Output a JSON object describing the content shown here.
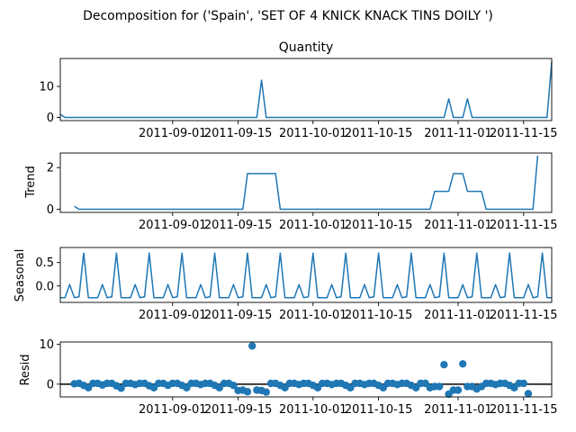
{
  "figure": {
    "suptitle": "Decomposition for ('Spain', 'SET OF 4 KNICK KNACK TINS DOILY ')"
  },
  "chart_data": [
    {
      "type": "line",
      "panel": "observed",
      "title": "Quantity",
      "ylabel": "",
      "x_start": "2011-08-08",
      "x_end": "2011-11-21",
      "xlim": [
        "2011-08-08",
        "2011-11-21"
      ],
      "ylim": [
        -1,
        19
      ],
      "yticks": [
        0,
        10
      ],
      "xticks": [
        "2011-09-01",
        "2011-09-15",
        "2011-10-01",
        "2011-10-15",
        "2011-11-01",
        "2011-11-15"
      ],
      "color": "#1f77b4",
      "points": [
        {
          "x": "2011-08-08",
          "y": 1
        },
        {
          "x": "2011-08-09",
          "y": 0
        },
        {
          "x": "2011-09-19",
          "y": 0
        },
        {
          "x": "2011-09-20",
          "y": 12
        },
        {
          "x": "2011-09-21",
          "y": 0
        },
        {
          "x": "2011-10-29",
          "y": 0
        },
        {
          "x": "2011-10-30",
          "y": 6
        },
        {
          "x": "2011-10-31",
          "y": 0
        },
        {
          "x": "2011-11-02",
          "y": 0
        },
        {
          "x": "2011-11-03",
          "y": 6
        },
        {
          "x": "2011-11-04",
          "y": 0
        },
        {
          "x": "2011-11-20",
          "y": 0
        },
        {
          "x": "2011-11-21",
          "y": 18
        }
      ]
    },
    {
      "type": "line",
      "panel": "trend",
      "title": "",
      "ylabel": "Trend",
      "xlim": [
        "2011-08-08",
        "2011-11-21"
      ],
      "ylim": [
        -0.15,
        2.7
      ],
      "yticks": [
        0,
        2
      ],
      "xticks": [
        "2011-09-01",
        "2011-09-15",
        "2011-10-01",
        "2011-10-15",
        "2011-11-01",
        "2011-11-15"
      ],
      "color": "#1f77b4",
      "points": [
        {
          "x": "2011-08-11",
          "y": 0.14
        },
        {
          "x": "2011-08-12",
          "y": 0
        },
        {
          "x": "2011-09-16",
          "y": 0
        },
        {
          "x": "2011-09-17",
          "y": 1.71
        },
        {
          "x": "2011-09-23",
          "y": 1.71
        },
        {
          "x": "2011-09-24",
          "y": 0
        },
        {
          "x": "2011-10-26",
          "y": 0
        },
        {
          "x": "2011-10-27",
          "y": 0.86
        },
        {
          "x": "2011-10-30",
          "y": 0.86
        },
        {
          "x": "2011-10-31",
          "y": 1.71
        },
        {
          "x": "2011-11-02",
          "y": 1.71
        },
        {
          "x": "2011-11-03",
          "y": 0.86
        },
        {
          "x": "2011-11-06",
          "y": 0.86
        },
        {
          "x": "2011-11-07",
          "y": 0
        },
        {
          "x": "2011-11-17",
          "y": 0
        },
        {
          "x": "2011-11-18",
          "y": 2.57
        }
      ]
    },
    {
      "type": "line",
      "panel": "seasonal",
      "title": "",
      "ylabel": "Seasonal",
      "xlim": [
        "2011-08-08",
        "2011-11-21"
      ],
      "ylim": [
        -0.35,
        0.82
      ],
      "yticks": [
        0.0,
        0.5
      ],
      "ytick_labels": [
        "0.0",
        "0.5"
      ],
      "xticks": [
        "2011-09-01",
        "2011-09-15",
        "2011-10-01",
        "2011-10-15",
        "2011-11-01",
        "2011-11-15"
      ],
      "color": "#1f77b4",
      "period_days": 7,
      "weekly_pattern": [
        -0.25,
        -0.25,
        0.03,
        -0.25,
        -0.23,
        0.7,
        -0.25
      ],
      "pattern_start": "2011-08-08"
    },
    {
      "type": "scatter",
      "panel": "resid",
      "title": "",
      "ylabel": "Resid",
      "xlim": [
        "2011-08-08",
        "2011-11-21"
      ],
      "ylim": [
        -3.2,
        10.6
      ],
      "yticks": [
        0,
        10
      ],
      "xticks": [
        "2011-09-01",
        "2011-09-15",
        "2011-10-01",
        "2011-10-15",
        "2011-11-01",
        "2011-11-15"
      ],
      "color": "#1f77b4",
      "baseline": 0,
      "points": [
        {
          "x": "2011-08-11",
          "y": 0.1
        },
        {
          "x": "2011-08-12",
          "y": 0.2
        },
        {
          "x": "2011-08-13",
          "y": -0.3
        },
        {
          "x": "2011-08-14",
          "y": -0.9
        },
        {
          "x": "2011-08-15",
          "y": 0.2
        },
        {
          "x": "2011-08-16",
          "y": 0.2
        },
        {
          "x": "2011-08-17",
          "y": -0.2
        },
        {
          "x": "2011-08-18",
          "y": 0.2
        },
        {
          "x": "2011-08-19",
          "y": 0.2
        },
        {
          "x": "2011-08-20",
          "y": -0.4
        },
        {
          "x": "2011-08-21",
          "y": -1.0
        },
        {
          "x": "2011-08-22",
          "y": 0.2
        },
        {
          "x": "2011-08-23",
          "y": 0.2
        },
        {
          "x": "2011-08-24",
          "y": -0.1
        },
        {
          "x": "2011-08-25",
          "y": 0.2
        },
        {
          "x": "2011-08-26",
          "y": 0.2
        },
        {
          "x": "2011-08-27",
          "y": -0.4
        },
        {
          "x": "2011-08-28",
          "y": -0.9
        },
        {
          "x": "2011-08-29",
          "y": 0.2
        },
        {
          "x": "2011-08-30",
          "y": 0.2
        },
        {
          "x": "2011-08-31",
          "y": -0.3
        },
        {
          "x": "2011-09-01",
          "y": 0.2
        },
        {
          "x": "2011-09-02",
          "y": 0.2
        },
        {
          "x": "2011-09-03",
          "y": -0.3
        },
        {
          "x": "2011-09-04",
          "y": -0.9
        },
        {
          "x": "2011-09-05",
          "y": 0.2
        },
        {
          "x": "2011-09-06",
          "y": 0.2
        },
        {
          "x": "2011-09-07",
          "y": -0.1
        },
        {
          "x": "2011-09-08",
          "y": 0.2
        },
        {
          "x": "2011-09-09",
          "y": 0.2
        },
        {
          "x": "2011-09-10",
          "y": -0.3
        },
        {
          "x": "2011-09-11",
          "y": -0.9
        },
        {
          "x": "2011-09-12",
          "y": 0.2
        },
        {
          "x": "2011-09-13",
          "y": 0.2
        },
        {
          "x": "2011-09-14",
          "y": -0.3
        },
        {
          "x": "2011-09-15",
          "y": -1.6
        },
        {
          "x": "2011-09-16",
          "y": -1.5
        },
        {
          "x": "2011-09-17",
          "y": -1.9
        },
        {
          "x": "2011-09-18",
          "y": 9.6
        },
        {
          "x": "2011-09-19",
          "y": -1.5
        },
        {
          "x": "2011-09-20",
          "y": -1.6
        },
        {
          "x": "2011-09-21",
          "y": -2.0
        },
        {
          "x": "2011-09-22",
          "y": 0.2
        },
        {
          "x": "2011-09-23",
          "y": 0.2
        },
        {
          "x": "2011-09-24",
          "y": -0.3
        },
        {
          "x": "2011-09-25",
          "y": -0.9
        },
        {
          "x": "2011-09-26",
          "y": 0.2
        },
        {
          "x": "2011-09-27",
          "y": 0.2
        },
        {
          "x": "2011-09-28",
          "y": -0.1
        },
        {
          "x": "2011-09-29",
          "y": 0.2
        },
        {
          "x": "2011-09-30",
          "y": 0.2
        },
        {
          "x": "2011-10-01",
          "y": -0.3
        },
        {
          "x": "2011-10-02",
          "y": -0.9
        },
        {
          "x": "2011-10-03",
          "y": 0.2
        },
        {
          "x": "2011-10-04",
          "y": 0.2
        },
        {
          "x": "2011-10-05",
          "y": -0.1
        },
        {
          "x": "2011-10-06",
          "y": 0.2
        },
        {
          "x": "2011-10-07",
          "y": 0.2
        },
        {
          "x": "2011-10-08",
          "y": -0.3
        },
        {
          "x": "2011-10-09",
          "y": -0.9
        },
        {
          "x": "2011-10-10",
          "y": 0.2
        },
        {
          "x": "2011-10-11",
          "y": 0.2
        },
        {
          "x": "2011-10-12",
          "y": -0.1
        },
        {
          "x": "2011-10-13",
          "y": 0.2
        },
        {
          "x": "2011-10-14",
          "y": 0.2
        },
        {
          "x": "2011-10-15",
          "y": -0.3
        },
        {
          "x": "2011-10-16",
          "y": -0.9
        },
        {
          "x": "2011-10-17",
          "y": 0.2
        },
        {
          "x": "2011-10-18",
          "y": 0.2
        },
        {
          "x": "2011-10-19",
          "y": -0.1
        },
        {
          "x": "2011-10-20",
          "y": 0.2
        },
        {
          "x": "2011-10-21",
          "y": 0.2
        },
        {
          "x": "2011-10-22",
          "y": -0.3
        },
        {
          "x": "2011-10-23",
          "y": -0.9
        },
        {
          "x": "2011-10-24",
          "y": 0.2
        },
        {
          "x": "2011-10-25",
          "y": 0.2
        },
        {
          "x": "2011-10-26",
          "y": -0.9
        },
        {
          "x": "2011-10-27",
          "y": -0.6
        },
        {
          "x": "2011-10-28",
          "y": -0.6
        },
        {
          "x": "2011-10-29",
          "y": 4.9
        },
        {
          "x": "2011-10-30",
          "y": -2.5
        },
        {
          "x": "2011-10-31",
          "y": -1.5
        },
        {
          "x": "2011-11-01",
          "y": -1.5
        },
        {
          "x": "2011-11-02",
          "y": 5.1
        },
        {
          "x": "2011-11-03",
          "y": -0.6
        },
        {
          "x": "2011-11-04",
          "y": -0.6
        },
        {
          "x": "2011-11-05",
          "y": -1.2
        },
        {
          "x": "2011-11-06",
          "y": -0.6
        },
        {
          "x": "2011-11-07",
          "y": 0.2
        },
        {
          "x": "2011-11-08",
          "y": 0.2
        },
        {
          "x": "2011-11-09",
          "y": -0.1
        },
        {
          "x": "2011-11-10",
          "y": 0.2
        },
        {
          "x": "2011-11-11",
          "y": 0.2
        },
        {
          "x": "2011-11-12",
          "y": -0.3
        },
        {
          "x": "2011-11-13",
          "y": -0.9
        },
        {
          "x": "2011-11-14",
          "y": 0.2
        },
        {
          "x": "2011-11-15",
          "y": 0.2
        },
        {
          "x": "2011-11-16",
          "y": -2.4
        }
      ]
    }
  ]
}
